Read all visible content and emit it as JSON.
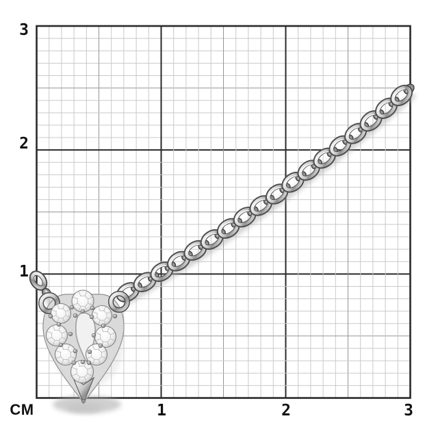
{
  "ruler": {
    "unit_label": "CM",
    "y_labels": [
      "3",
      "2",
      "1"
    ],
    "x_labels": [
      "1",
      "2",
      "3"
    ]
  },
  "colors": {
    "grid-minor": "#c9c9c9",
    "grid-mid": "#949494",
    "grid-major": "#2a2a2a",
    "label": "#111111",
    "metal-light": "#fdfdfd",
    "metal-mid": "#9f9f9f",
    "shadow": "#b0b0b0"
  }
}
